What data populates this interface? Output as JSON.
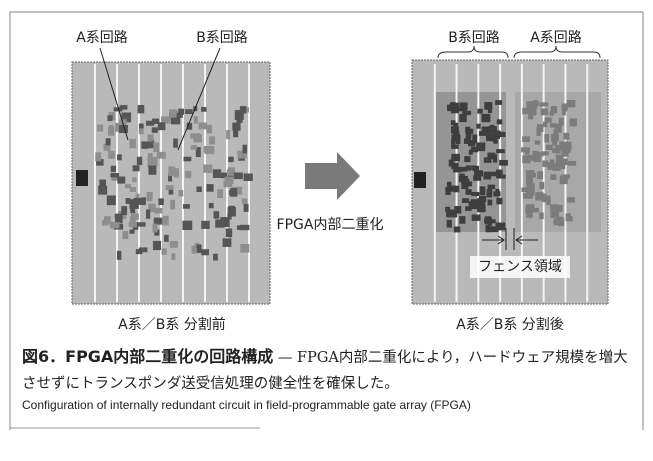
{
  "figure": {
    "left_panel": {
      "labels": [
        "A系回路",
        "B系回路"
      ],
      "caption": "A系／B系 分割前"
    },
    "arrow_label": "FPGA内部二重化",
    "right_panel": {
      "labels": [
        "B系回路",
        "A系回路"
      ],
      "fence_label": "フェンス領域",
      "caption": "A系／B系 分割後"
    },
    "caption": {
      "title": "図6．FPGA内部二重化の回路構成",
      "separator": "—",
      "body": "FPGA内部二重化により，ハードウェア規模を増大させずにトランスポンダ送受信処理の健全性を確保した。",
      "english": "Configuration of internally redundant circuit in field-programmable gate array (FPGA)"
    }
  }
}
